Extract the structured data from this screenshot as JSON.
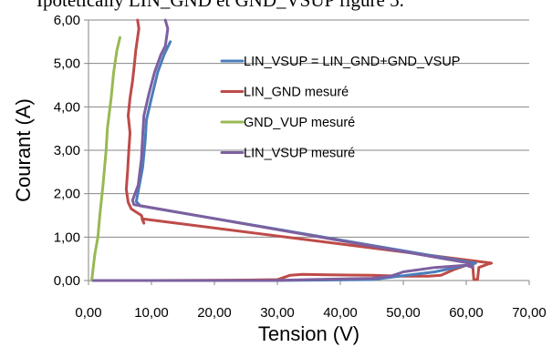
{
  "caption": "Ipotetically LIN_GND et GND_VSUP figure 5.",
  "chart_data": {
    "type": "line",
    "title": "",
    "xlabel": "Tension (V)",
    "ylabel": "Courant (A)",
    "xlim": [
      0,
      70
    ],
    "ylim": [
      0,
      6
    ],
    "x_ticks": [
      "0,00",
      "10,00",
      "20,00",
      "30,00",
      "40,00",
      "50,00",
      "60,00",
      "70,00"
    ],
    "y_ticks": [
      "0,00",
      "1,00",
      "2,00",
      "3,00",
      "4,00",
      "5,00",
      "6,00"
    ],
    "grid": true,
    "legend_position": "right",
    "colors": {
      "blue": "#4a7ebb",
      "red": "#be4b48",
      "green": "#98b954",
      "purple": "#7d60a0"
    },
    "series": [
      {
        "name": "LIN_VSUP = LIN_GND+GND_VSUP",
        "color": "#4a7ebb",
        "points": [
          [
            0.8,
            0.0
          ],
          [
            29,
            0.0
          ],
          [
            45,
            0.02
          ],
          [
            55,
            0.2
          ],
          [
            61,
            0.38
          ],
          [
            61.5,
            0.4
          ],
          [
            8.2,
            1.72
          ],
          [
            7.6,
            1.82
          ],
          [
            8.6,
            2.6
          ],
          [
            9.0,
            3.2
          ],
          [
            9.2,
            3.7
          ],
          [
            10,
            4.2
          ],
          [
            11,
            4.8
          ],
          [
            12,
            5.2
          ],
          [
            13,
            5.5
          ]
        ]
      },
      {
        "name": "LIN_GND mesuré",
        "color": "#be4b48",
        "points": [
          [
            0.8,
            0.0
          ],
          [
            10,
            0.0
          ],
          [
            25,
            0.01
          ],
          [
            30,
            0.02
          ],
          [
            31,
            0.07
          ],
          [
            32,
            0.12
          ],
          [
            34,
            0.14
          ],
          [
            38,
            0.13
          ],
          [
            45,
            0.12
          ],
          [
            50,
            0.1
          ],
          [
            54,
            0.1
          ],
          [
            56,
            0.12
          ],
          [
            58,
            0.25
          ],
          [
            60,
            0.35
          ],
          [
            61,
            0.4
          ],
          [
            61.2,
            0.02
          ],
          [
            61.8,
            0.02
          ],
          [
            62,
            0.3
          ],
          [
            63.5,
            0.38
          ],
          [
            64,
            0.4
          ],
          [
            8.5,
            1.42
          ],
          [
            8.8,
            1.32
          ],
          [
            8.4,
            1.5
          ],
          [
            6.8,
            1.65
          ],
          [
            6.3,
            1.8
          ],
          [
            6.0,
            2.1
          ],
          [
            6.2,
            2.5
          ],
          [
            6.4,
            3.0
          ],
          [
            6.6,
            3.4
          ],
          [
            6.3,
            3.8
          ],
          [
            6.6,
            4.2
          ],
          [
            7.0,
            4.6
          ],
          [
            7.3,
            5.0
          ],
          [
            7.5,
            5.3
          ],
          [
            8.0,
            5.8
          ],
          [
            7.8,
            6.0
          ]
        ]
      },
      {
        "name": "GND_VUP mesuré",
        "color": "#98b954",
        "points": [
          [
            0.5,
            0.0
          ],
          [
            1.0,
            0.6
          ],
          [
            1.5,
            1.0
          ],
          [
            1.8,
            1.5
          ],
          [
            2.3,
            2.2
          ],
          [
            2.8,
            3.0
          ],
          [
            3.0,
            3.5
          ],
          [
            3.6,
            4.2
          ],
          [
            4.0,
            4.8
          ],
          [
            4.5,
            5.3
          ],
          [
            5.0,
            5.6
          ]
        ]
      },
      {
        "name": "LIN_VSUP mesuré",
        "color": "#7d60a0",
        "points": [
          [
            0.8,
            0.0
          ],
          [
            29,
            0.0
          ],
          [
            35,
            0.02
          ],
          [
            45,
            0.05
          ],
          [
            48,
            0.1
          ],
          [
            49,
            0.15
          ],
          [
            50,
            0.2
          ],
          [
            55,
            0.3
          ],
          [
            60,
            0.35
          ],
          [
            61,
            0.3
          ],
          [
            60.5,
            0.4
          ],
          [
            7.2,
            1.75
          ],
          [
            7.0,
            1.85
          ],
          [
            7.9,
            2.2
          ],
          [
            8.4,
            2.8
          ],
          [
            8.6,
            3.3
          ],
          [
            8.8,
            3.8
          ],
          [
            9.6,
            4.3
          ],
          [
            10.5,
            4.8
          ],
          [
            11.5,
            5.2
          ],
          [
            12.2,
            5.4
          ],
          [
            12.6,
            5.8
          ],
          [
            12.2,
            6.0
          ]
        ]
      }
    ]
  }
}
